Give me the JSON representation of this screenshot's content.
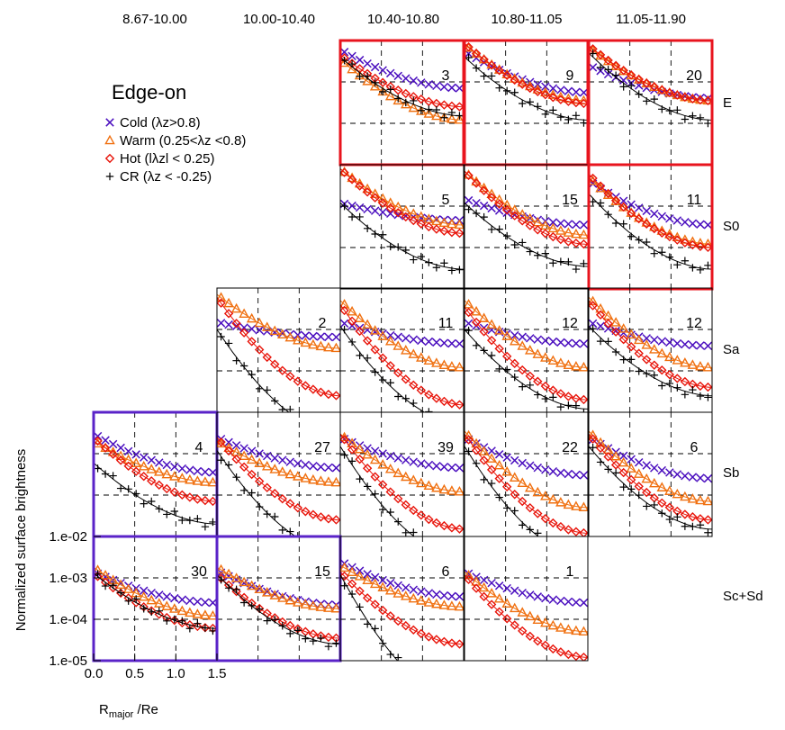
{
  "columns": [
    "8.67-10.00",
    "10.00-10.40",
    "10.40-10.80",
    "10.80-11.05",
    "11.05-11.90"
  ],
  "rows": [
    "E",
    "S0",
    "Sa",
    "Sb",
    "Sc+Sd"
  ],
  "legend": {
    "title": "Edge-on",
    "entries": [
      {
        "key": "cold",
        "marker": "x",
        "color": "#4b0fbf",
        "text": "Cold (λz>0.8)"
      },
      {
        "key": "warm",
        "marker": "triangle",
        "color": "#f07010",
        "text": "Warm (0.25<λz <0.8)"
      },
      {
        "key": "hot",
        "marker": "diamond",
        "color": "#e8140a",
        "text": "Hot (lλzl < 0.25)"
      },
      {
        "key": "cr",
        "marker": "plus",
        "color": "#000000",
        "text": "CR (λz < -0.25)"
      }
    ]
  },
  "axes": {
    "ylabel": "Normalized surface brightness",
    "xlabel": "Rmajor /Re",
    "yticks": [
      "1.e-02",
      "1.e-03",
      "1.e-04",
      "1.e-05"
    ],
    "xticks": [
      "0.0",
      "0.5",
      "1.0",
      "1.5"
    ]
  },
  "chart_data": {
    "type": "scatter",
    "xlim": [
      0,
      1.5
    ],
    "ylim": [
      1e-05,
      0.01
    ],
    "yscale": "log",
    "fit_line_colors": {
      "warm": "#f07010",
      "hot": "#e8140a",
      "cr": "#000000"
    },
    "frame_colors": {
      "red": "#e8141e",
      "blue": "#5a23c8",
      "default": "#000000"
    },
    "panels": [
      {
        "row": 0,
        "col": 2,
        "count": "3",
        "frame": "red",
        "y0": [
          0.006,
          0.0035,
          0.0045,
          0.004
        ],
        "y1": [
          0.0007,
          0.00012,
          0.00025,
          0.00015
        ]
      },
      {
        "row": 0,
        "col": 3,
        "count": "9",
        "frame": "red",
        "y0": [
          0.0055,
          0.008,
          0.0085,
          0.004
        ],
        "y1": [
          0.00055,
          0.00035,
          0.0003,
          0.00012
        ]
      },
      {
        "row": 0,
        "col": 4,
        "count": "20",
        "frame": "red",
        "y0": [
          0.0025,
          0.007,
          0.0075,
          0.005
        ],
        "y1": [
          0.0004,
          0.00035,
          0.00035,
          0.00012
        ]
      },
      {
        "row": 1,
        "col": 2,
        "count": "5",
        "frame": "default",
        "y0": [
          0.0012,
          0.008,
          0.008,
          0.0012
        ],
        "y1": [
          0.00045,
          0.00035,
          0.00022,
          3e-05
        ]
      },
      {
        "row": 1,
        "col": 3,
        "count": "15",
        "frame": "default",
        "y0": [
          0.0015,
          0.007,
          0.007,
          0.0012
        ],
        "y1": [
          0.00035,
          0.0002,
          0.00012,
          3.5e-05
        ]
      },
      {
        "row": 1,
        "col": 4,
        "count": "11",
        "frame": "red",
        "y0": [
          0.004,
          0.005,
          0.006,
          0.002
        ],
        "y1": [
          0.00035,
          0.00012,
          0.0001,
          3e-05
        ]
      },
      {
        "row": 2,
        "col": 1,
        "count": "2",
        "frame": "default",
        "y0": [
          0.0015,
          0.007,
          0.006,
          0.001
        ],
        "y1": [
          0.00065,
          0.00035,
          2.5e-05,
          3e-06
        ]
      },
      {
        "row": 2,
        "col": 2,
        "count": "11",
        "frame": "default",
        "y0": [
          0.0015,
          0.005,
          0.004,
          0.0012
        ],
        "y1": [
          0.00045,
          0.00012,
          1.5e-05,
          5e-06
        ]
      },
      {
        "row": 2,
        "col": 3,
        "count": "12",
        "frame": "default",
        "y0": [
          0.0015,
          0.005,
          0.0035,
          0.001
        ],
        "y1": [
          0.00045,
          0.00012,
          2e-05,
          1.2e-05
        ]
      },
      {
        "row": 2,
        "col": 4,
        "count": "12",
        "frame": "default",
        "y0": [
          0.0015,
          0.006,
          0.005,
          0.0012
        ],
        "y1": [
          0.0004,
          0.00012,
          4e-05,
          2.5e-05
        ]
      },
      {
        "row": 3,
        "col": 0,
        "count": "4",
        "frame": "blue",
        "y0": [
          0.003,
          0.002,
          0.0025,
          0.0006
        ],
        "y1": [
          0.00035,
          0.0002,
          7e-05,
          2e-05
        ]
      },
      {
        "row": 3,
        "col": 1,
        "count": "27",
        "frame": "default",
        "y0": [
          0.0025,
          0.002,
          0.0025,
          0.0012
        ],
        "y1": [
          0.00045,
          0.0002,
          2.5e-05,
          4e-06
        ]
      },
      {
        "row": 3,
        "col": 2,
        "count": "39",
        "frame": "default",
        "y0": [
          0.0025,
          0.003,
          0.003,
          0.0015
        ],
        "y1": [
          0.00045,
          0.00012,
          1.5e-05,
          3e-06
        ]
      },
      {
        "row": 3,
        "col": 3,
        "count": "22",
        "frame": "default",
        "y0": [
          0.0025,
          0.0035,
          0.003,
          0.0015
        ],
        "y1": [
          0.0003,
          5e-05,
          1.2e-05,
          3e-06
        ]
      },
      {
        "row": 3,
        "col": 4,
        "count": "6",
        "frame": "default",
        "y0": [
          0.0025,
          0.0035,
          0.003,
          0.0015
        ],
        "y1": [
          0.00025,
          7e-05,
          2.5e-05,
          1.5e-05
        ]
      },
      {
        "row": 4,
        "col": 0,
        "count": "30",
        "frame": "blue",
        "y0": [
          0.0014,
          0.0018,
          0.0013,
          0.0013
        ],
        "y1": [
          0.00025,
          0.00012,
          6e-05,
          6e-05
        ]
      },
      {
        "row": 4,
        "col": 1,
        "count": "15",
        "frame": "blue",
        "y0": [
          0.0015,
          0.0018,
          0.0012,
          0.0012
        ],
        "y1": [
          0.00022,
          0.00018,
          3.5e-05,
          2.5e-05
        ]
      },
      {
        "row": 4,
        "col": 2,
        "count": "6",
        "frame": "default",
        "y0": [
          0.0025,
          0.002,
          0.0014,
          0.0012
        ],
        "y1": [
          0.00035,
          0.0002,
          2.5e-05,
          1e-06
        ]
      },
      {
        "row": 4,
        "col": 3,
        "count": "1",
        "frame": "default",
        "y0": [
          0.0014,
          0.0014,
          0.0012,
          null
        ],
        "y1": [
          0.00025,
          5e-05,
          1.2e-05,
          null
        ]
      }
    ]
  }
}
